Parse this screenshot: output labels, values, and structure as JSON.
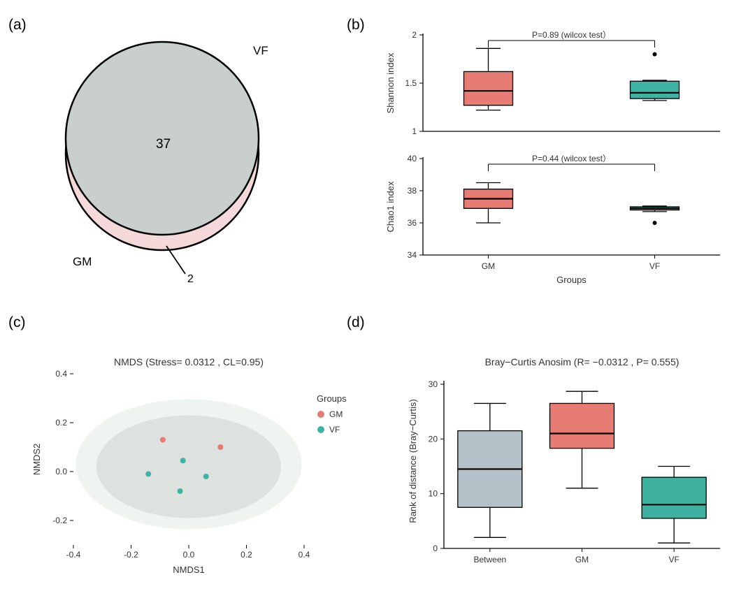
{
  "labels": {
    "a": "(a)",
    "b": "(b)",
    "c": "(c)",
    "d": "(d)"
  },
  "colors": {
    "gm": "#e67c73",
    "vf": "#3eb3a4",
    "vf_box": "#3fb1a0",
    "between": "#b5c1c9",
    "venn_int": "#c9cfcd",
    "venn_gm": "#f4d8da",
    "black": "#000000",
    "axis": "#333333",
    "text": "#333333",
    "ellipse_outer": "#e9efea",
    "ellipse_inner": "#ced3d2",
    "bg": "#ffffff"
  },
  "panel_a": {
    "label_vf": "VF",
    "label_gm": "GM",
    "center_value": "37",
    "crescent_value": "2"
  },
  "panel_b": {
    "xlabel": "Groups",
    "groups": [
      "GM",
      "VF"
    ],
    "shannon": {
      "ylabel": "Shannon index",
      "ylim": [
        1.0,
        2.0
      ],
      "yticks": [
        1.0,
        1.5,
        2.0
      ],
      "p_text": "P=0.89 (wilcox test）",
      "gm": {
        "min": 1.22,
        "q1": 1.27,
        "med": 1.42,
        "q3": 1.62,
        "max": 1.86
      },
      "vf": {
        "min": 1.32,
        "q1": 1.34,
        "med": 1.4,
        "q3": 1.52,
        "max": 1.53,
        "outlier": 1.8
      }
    },
    "chao1": {
      "ylabel": "Chao1 index",
      "ylim": [
        34,
        40
      ],
      "yticks": [
        34,
        36,
        38,
        40
      ],
      "p_text": "P=0.44 (wilcox test）",
      "gm": {
        "min": 36.0,
        "q1": 36.9,
        "med": 37.5,
        "q3": 38.1,
        "max": 38.5
      },
      "vf": {
        "min": 36.7,
        "q1": 36.8,
        "med": 36.9,
        "q3": 37.0,
        "max": 37.05,
        "outlier": 36.0
      }
    }
  },
  "panel_c": {
    "title": "NMDS (Stress= 0.0312 , CL=0.95)",
    "xlabel": "NMDS1",
    "ylabel": "NMDS2",
    "xlim": [
      -0.4,
      0.4
    ],
    "ylim": [
      -0.3,
      0.4
    ],
    "xticks": [
      -0.4,
      -0.2,
      0.0,
      0.2,
      0.4
    ],
    "yticks": [
      -0.2,
      0.0,
      0.2,
      0.4
    ],
    "legend_title": "Groups",
    "legend_items": [
      "GM",
      "VF"
    ],
    "points": [
      {
        "x": -0.09,
        "y": 0.13,
        "group": "GM"
      },
      {
        "x": 0.11,
        "y": 0.1,
        "group": "GM"
      },
      {
        "x": -0.02,
        "y": 0.045,
        "group": "VF"
      },
      {
        "x": -0.14,
        "y": -0.01,
        "group": "VF"
      },
      {
        "x": 0.06,
        "y": -0.02,
        "group": "VF"
      },
      {
        "x": -0.03,
        "y": -0.08,
        "group": "VF"
      }
    ]
  },
  "panel_d": {
    "title": "Bray−Curtis Anosim   (R= −0.0312 ,  P= 0.555)",
    "ylabel": "Rank of distance (Bray−Curtis)",
    "ylim": [
      0,
      30
    ],
    "yticks": [
      0,
      10,
      20,
      30
    ],
    "groups": [
      "Between",
      "GM",
      "VF"
    ],
    "between": {
      "min": 2,
      "q1": 7.5,
      "med": 14.5,
      "q3": 21.5,
      "max": 26.5,
      "color": "between"
    },
    "gm": {
      "min": 11,
      "q1": 18.3,
      "med": 21.0,
      "q3": 26.5,
      "max": 28.7,
      "color": "gm"
    },
    "vf": {
      "min": 1,
      "q1": 5.5,
      "med": 8.0,
      "q3": 13.0,
      "max": 15.0,
      "color": "vf_box"
    }
  },
  "style": {
    "panel_label_fontsize": 21,
    "axis_fontsize": 13,
    "tick_fontsize": 12,
    "title_fontsize": 14,
    "box_stroke": "#000000",
    "box_stroke_w": 1.4,
    "median_w": 2.2,
    "point_r": 4
  }
}
